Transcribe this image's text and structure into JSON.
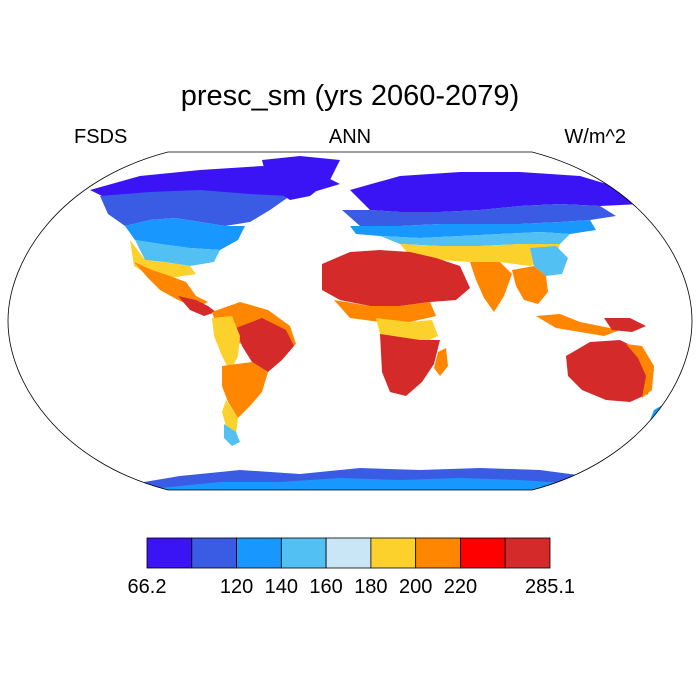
{
  "title": "presc_sm (yrs 2060-2079)",
  "left_subtitle": "FSDS",
  "center_subtitle": "ANN",
  "right_subtitle": "W/m^2",
  "colorbar": {
    "colors": [
      "#3b14f5",
      "#3a5ce4",
      "#1897ff",
      "#52c0f3",
      "#c9e6f7",
      "#fdd12b",
      "#ff8600",
      "#ff0000",
      "#d42a2a"
    ],
    "labels": [
      "66.2",
      "",
      "120",
      "140",
      "160",
      "180",
      "200",
      "220",
      "",
      "285.1"
    ]
  },
  "map": {
    "projection": "Robinson",
    "colors": {
      "c1": "#3b14f5",
      "c2": "#3a5ce4",
      "c3": "#1897ff",
      "c4": "#52c0f3",
      "c5": "#c9e6f7",
      "c6": "#fdd12b",
      "c7": "#ff8600",
      "c8": "#ff0000",
      "c9": "#d42a2a"
    }
  }
}
